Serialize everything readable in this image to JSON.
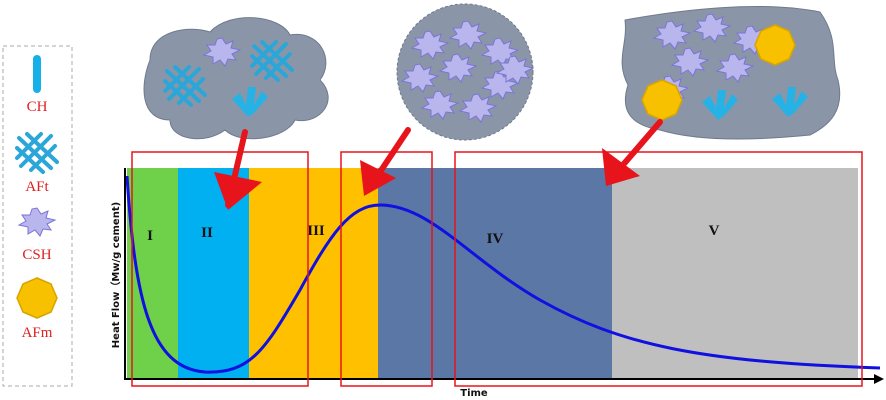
{
  "legend": {
    "items": [
      {
        "label": "CH"
      },
      {
        "label": "AFt"
      },
      {
        "label": "CSH"
      },
      {
        "label": "AFm"
      }
    ]
  },
  "stages": [
    {
      "label": "I"
    },
    {
      "label": "II"
    },
    {
      "label": "III"
    },
    {
      "label": "IV"
    },
    {
      "label": "V"
    }
  ],
  "axes": {
    "y_label": "Heat Flow（Mw/g cement)",
    "x_label": "Time"
  }
}
